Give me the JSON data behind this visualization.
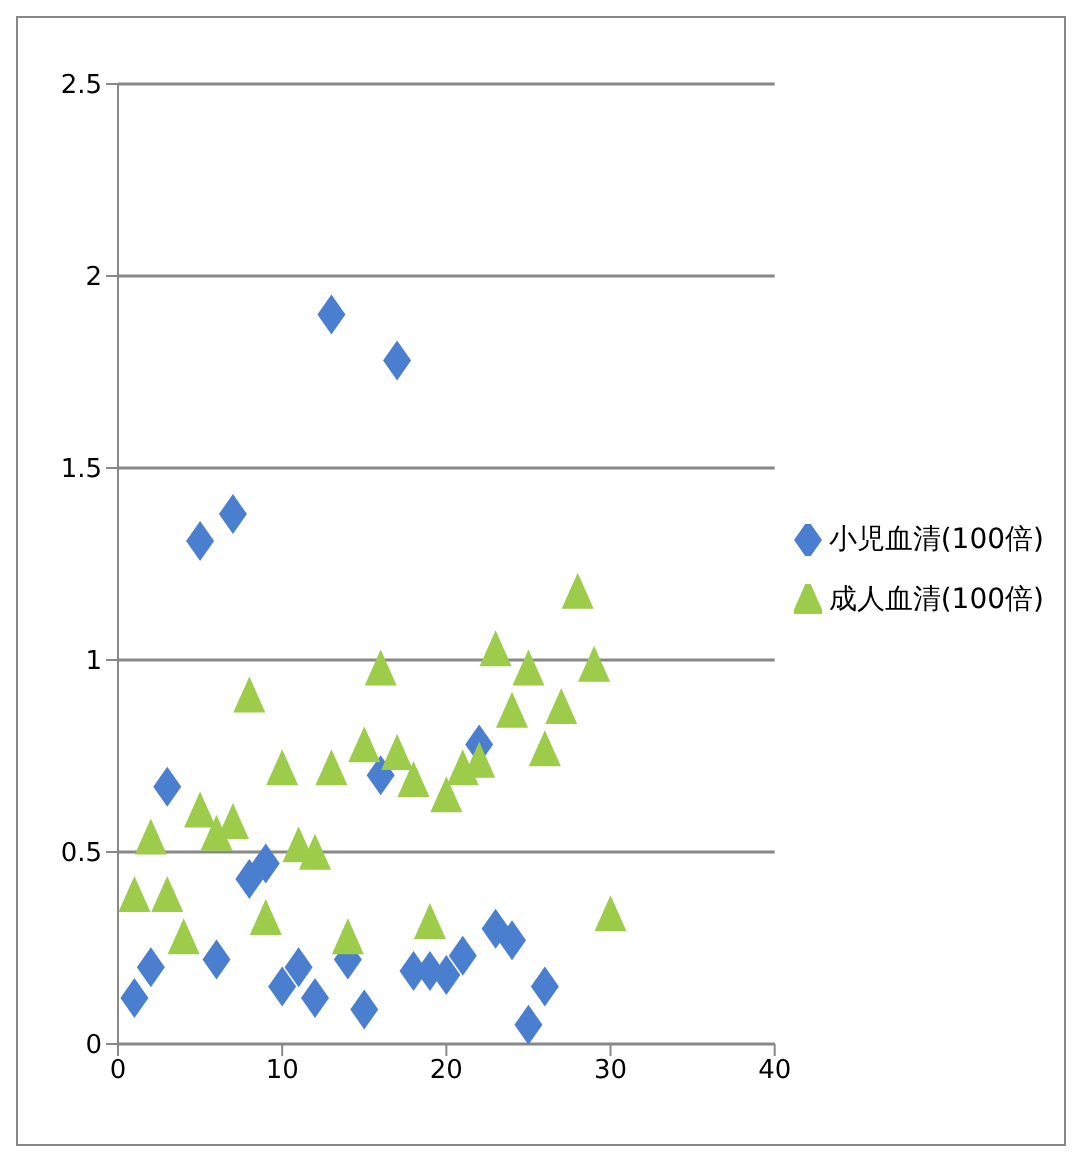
{
  "chart_data": {
    "type": "scatter",
    "xlim": [
      0,
      40
    ],
    "xticks": [
      0,
      10,
      20,
      30,
      40
    ],
    "ylim": [
      0,
      2.5
    ],
    "yticks": [
      0,
      0.5,
      1,
      1.5,
      2,
      2.5
    ],
    "grid": "y",
    "legend": "right",
    "series": [
      {
        "name": "小児血清(100倍)",
        "color": "#4a7fd0",
        "marker": "diamond",
        "x": [
          1,
          2,
          3,
          5,
          6,
          7,
          8,
          9,
          10,
          11,
          12,
          13,
          14,
          15,
          16,
          17,
          18,
          19,
          20,
          21,
          22,
          23,
          24,
          25,
          26
        ],
        "values": [
          0.12,
          0.2,
          0.67,
          1.31,
          0.22,
          1.38,
          0.43,
          0.47,
          0.15,
          0.2,
          0.12,
          1.9,
          0.22,
          0.09,
          0.7,
          1.78,
          0.19,
          0.19,
          0.18,
          0.23,
          0.78,
          0.3,
          0.27,
          0.05,
          0.15
        ]
      },
      {
        "name": "成人血清(100倍)",
        "color": "#9ccc4a",
        "marker": "triangle",
        "x": [
          1,
          2,
          3,
          4,
          5,
          6,
          7,
          8,
          9,
          10,
          11,
          12,
          13,
          14,
          15,
          16,
          17,
          18,
          19,
          20,
          21,
          22,
          23,
          24,
          25,
          26,
          27,
          28,
          29,
          30
        ],
        "values": [
          0.38,
          0.53,
          0.38,
          0.27,
          0.6,
          0.54,
          0.57,
          0.9,
          0.32,
          0.71,
          0.51,
          0.49,
          0.71,
          0.27,
          0.77,
          0.97,
          0.75,
          0.68,
          0.31,
          0.64,
          0.71,
          0.73,
          1.02,
          0.86,
          0.97,
          0.76,
          0.87,
          1.17,
          0.98,
          0.33
        ]
      }
    ]
  }
}
